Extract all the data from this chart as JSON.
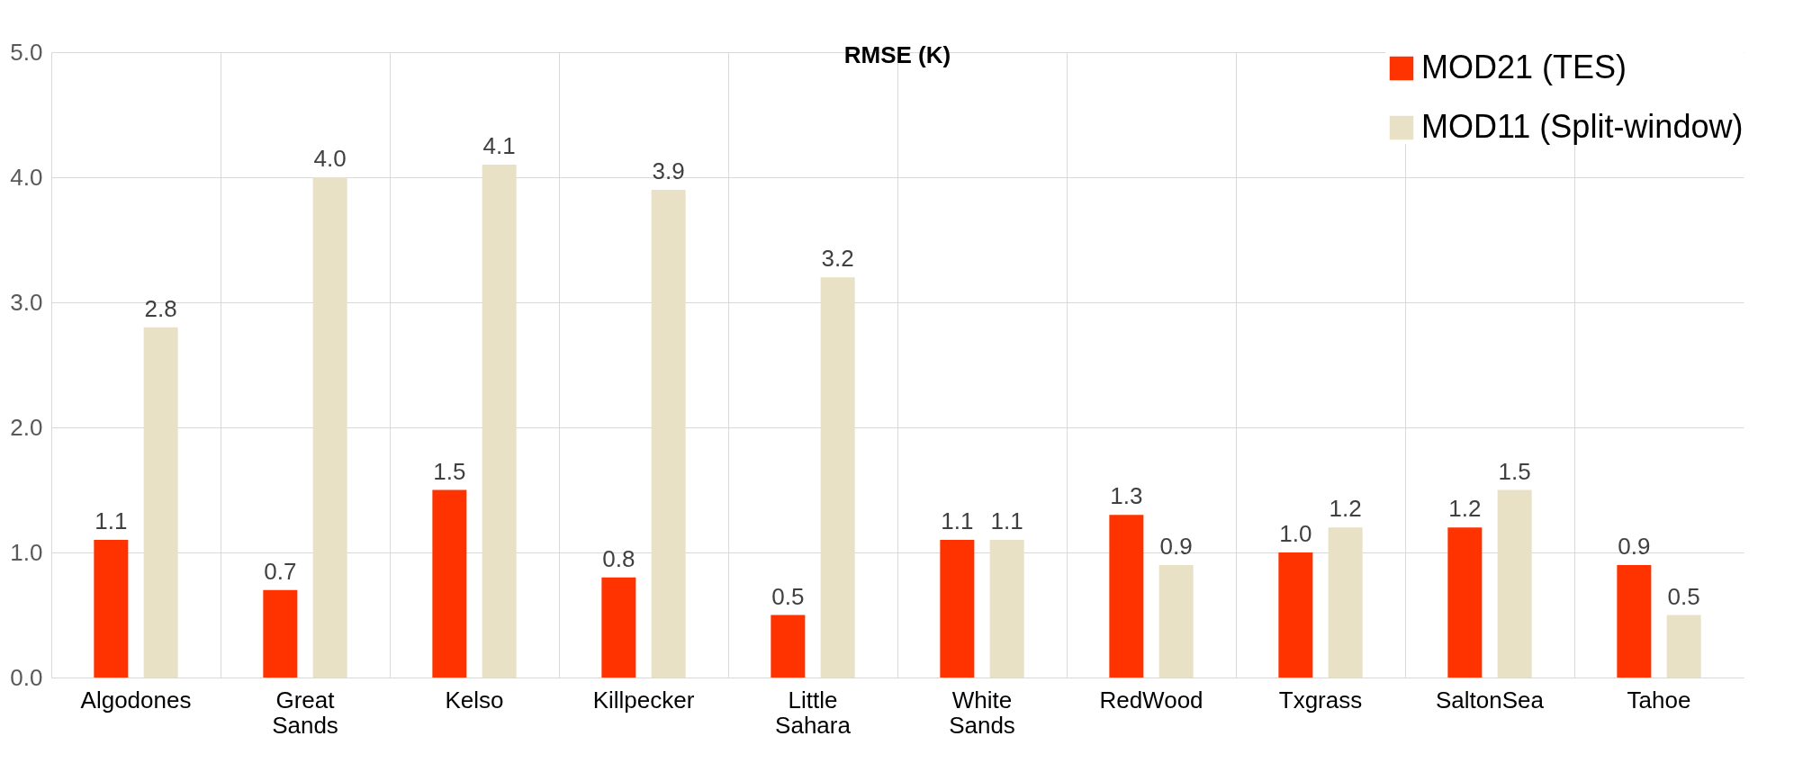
{
  "chart_data": {
    "type": "bar",
    "title": "RMSE (K)",
    "categories": [
      "Algodones",
      "Great Sands",
      "Kelso",
      "Killpecker",
      "Little Sahara",
      "White Sands",
      "RedWood",
      "Txgrass",
      "SaltonSea",
      "Tahoe"
    ],
    "series": [
      {
        "name": "MOD21 (TES)",
        "color": "#ff3300",
        "values": [
          1.1,
          0.7,
          1.5,
          0.8,
          0.5,
          1.1,
          1.3,
          1.0,
          1.2,
          0.9
        ],
        "value_labels": [
          "1.1",
          "0.7",
          "1.5",
          "0.8",
          "0.5",
          "1.1",
          "1.3",
          "1.0",
          "1.2",
          "0.9"
        ]
      },
      {
        "name": "MOD11 (Split-window)",
        "color": "#e8e1c5",
        "values": [
          2.8,
          4.0,
          4.1,
          3.9,
          3.2,
          1.1,
          0.9,
          1.2,
          1.5,
          0.5
        ],
        "value_labels": [
          "2.8",
          "4.0",
          "4.1",
          "3.9",
          "3.2",
          "1.1",
          "0.9",
          "1.2",
          "1.5",
          "0.5"
        ]
      }
    ],
    "ylim": [
      0,
      5
    ],
    "yticks": [
      {
        "value": 0,
        "label": "0.0"
      },
      {
        "value": 1,
        "label": "1.0"
      },
      {
        "value": 2,
        "label": "2.0"
      },
      {
        "value": 3,
        "label": "3.0"
      },
      {
        "value": 4,
        "label": "4.0"
      },
      {
        "value": 5,
        "label": "5.0"
      }
    ],
    "grid": true,
    "legend": "top right"
  }
}
